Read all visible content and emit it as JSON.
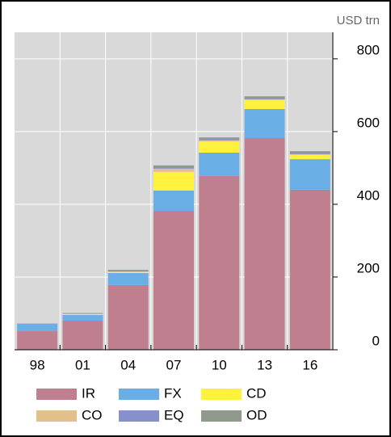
{
  "chart_data": {
    "type": "stacked_bar",
    "unit_label": "USD trn",
    "categories": [
      "98",
      "01",
      "04",
      "07",
      "10",
      "13",
      "16"
    ],
    "series": [
      {
        "name": "IR",
        "color": "#c07f8f",
        "values": [
          51,
          80,
          178,
          382,
          478,
          582,
          440
        ]
      },
      {
        "name": "FX",
        "color": "#6aaee6",
        "values": [
          20,
          16,
          33,
          56,
          64,
          80,
          84
        ]
      },
      {
        "name": "CD",
        "color": "#fff13c",
        "values": [
          0,
          2,
          3,
          51,
          31,
          25,
          12
        ]
      },
      {
        "name": "CO",
        "color": "#e2c08c",
        "values": [
          0,
          1,
          1,
          9,
          3,
          2,
          2
        ]
      },
      {
        "name": "EQ",
        "color": "#8890cc",
        "values": [
          1,
          1,
          3,
          4,
          4,
          4,
          4
        ]
      },
      {
        "name": "OD",
        "color": "#8f9a8c",
        "values": [
          0,
          1,
          2,
          5,
          4,
          4,
          4
        ]
      }
    ],
    "ylim": [
      0,
      873
    ],
    "yticks": [
      0,
      200,
      400,
      600,
      800
    ],
    "grid": true
  }
}
